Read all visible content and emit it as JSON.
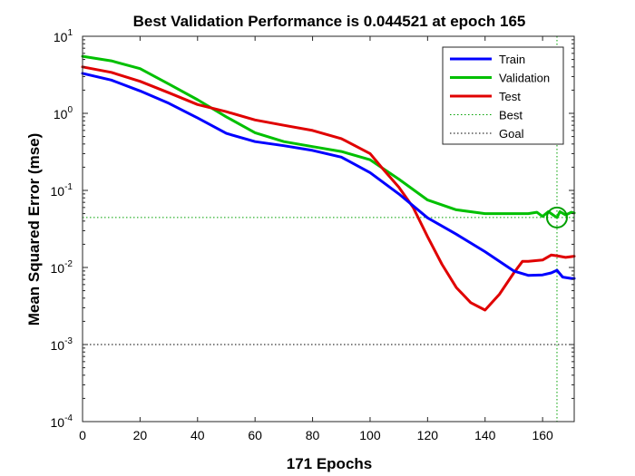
{
  "chart_data": {
    "type": "line",
    "title": "Best Validation Performance is 0.044521 at epoch 165",
    "xlabel": "171 Epochs",
    "ylabel": "Mean Squared Error  (mse)",
    "xlim": [
      0,
      171
    ],
    "ylim": [
      0.0001,
      10
    ],
    "yscale": "log",
    "xticks": [
      "0",
      "20",
      "40",
      "60",
      "80",
      "100",
      "120",
      "140",
      "160"
    ],
    "xtick_values": [
      0,
      20,
      40,
      60,
      80,
      100,
      120,
      140,
      160
    ],
    "yticks": [
      {
        "base": "10",
        "exp": "-4",
        "value": 0.0001
      },
      {
        "base": "10",
        "exp": "-3",
        "value": 0.001
      },
      {
        "base": "10",
        "exp": "-2",
        "value": 0.01
      },
      {
        "base": "10",
        "exp": "-1",
        "value": 0.1
      },
      {
        "base": "10",
        "exp": "0",
        "value": 1
      },
      {
        "base": "10",
        "exp": "1",
        "value": 10
      }
    ],
    "grid": false,
    "legend_position": "top-right",
    "best": {
      "epoch": 165,
      "value": 0.044521,
      "color": "#00a000"
    },
    "goal": {
      "value": 0.001,
      "color": "#000000"
    },
    "series": [
      {
        "name": "Train",
        "color": "#0000ff",
        "x": [
          0,
          10,
          20,
          30,
          40,
          50,
          60,
          70,
          80,
          90,
          100,
          110,
          120,
          130,
          140,
          150,
          155,
          160,
          163,
          165,
          167,
          170,
          171
        ],
        "y": [
          3.3,
          2.7,
          1.95,
          1.35,
          0.87,
          0.55,
          0.43,
          0.38,
          0.33,
          0.27,
          0.17,
          0.09,
          0.044,
          0.027,
          0.016,
          0.009,
          0.0079,
          0.008,
          0.0085,
          0.0092,
          0.0075,
          0.0072,
          0.0072
        ]
      },
      {
        "name": "Validation",
        "color": "#00c000",
        "x": [
          0,
          10,
          20,
          30,
          40,
          50,
          60,
          70,
          80,
          90,
          100,
          110,
          120,
          130,
          140,
          150,
          155,
          158,
          160,
          162,
          164,
          165,
          166,
          168,
          170,
          171
        ],
        "y": [
          5.5,
          4.8,
          3.8,
          2.4,
          1.5,
          0.9,
          0.56,
          0.43,
          0.37,
          0.32,
          0.25,
          0.14,
          0.075,
          0.056,
          0.05,
          0.05,
          0.05,
          0.052,
          0.046,
          0.053,
          0.047,
          0.0445,
          0.053,
          0.048,
          0.052,
          0.051
        ]
      },
      {
        "name": "Test",
        "color": "#e00000",
        "x": [
          0,
          10,
          20,
          30,
          40,
          50,
          60,
          70,
          80,
          90,
          100,
          105,
          110,
          115,
          120,
          125,
          130,
          135,
          140,
          145,
          150,
          153,
          155,
          160,
          163,
          165,
          168,
          171
        ],
        "y": [
          4.0,
          3.4,
          2.6,
          1.85,
          1.3,
          1.05,
          0.82,
          0.7,
          0.6,
          0.47,
          0.3,
          0.18,
          0.11,
          0.06,
          0.025,
          0.011,
          0.0055,
          0.0035,
          0.0028,
          0.0045,
          0.0085,
          0.012,
          0.012,
          0.0125,
          0.0145,
          0.0142,
          0.0135,
          0.014
        ]
      },
      {
        "name": "Best",
        "color": "#00a000",
        "dotted": true
      },
      {
        "name": "Goal",
        "color": "#000000",
        "dotted": true
      }
    ]
  }
}
